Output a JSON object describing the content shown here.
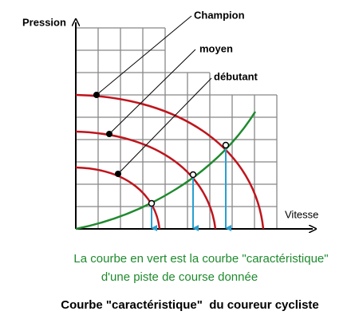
{
  "axes": {
    "y_label": "Pression",
    "x_label": "Vitesse"
  },
  "curves": {
    "champion": "Champion",
    "moyen": "moyen",
    "debutant": "débutant"
  },
  "caption": {
    "line1": "La courbe en vert est la courbe \"caractéristique\"",
    "line2": "d'une piste de course donnée"
  },
  "title": "Courbe \"caractéristique\"  du coureur cycliste"
}
